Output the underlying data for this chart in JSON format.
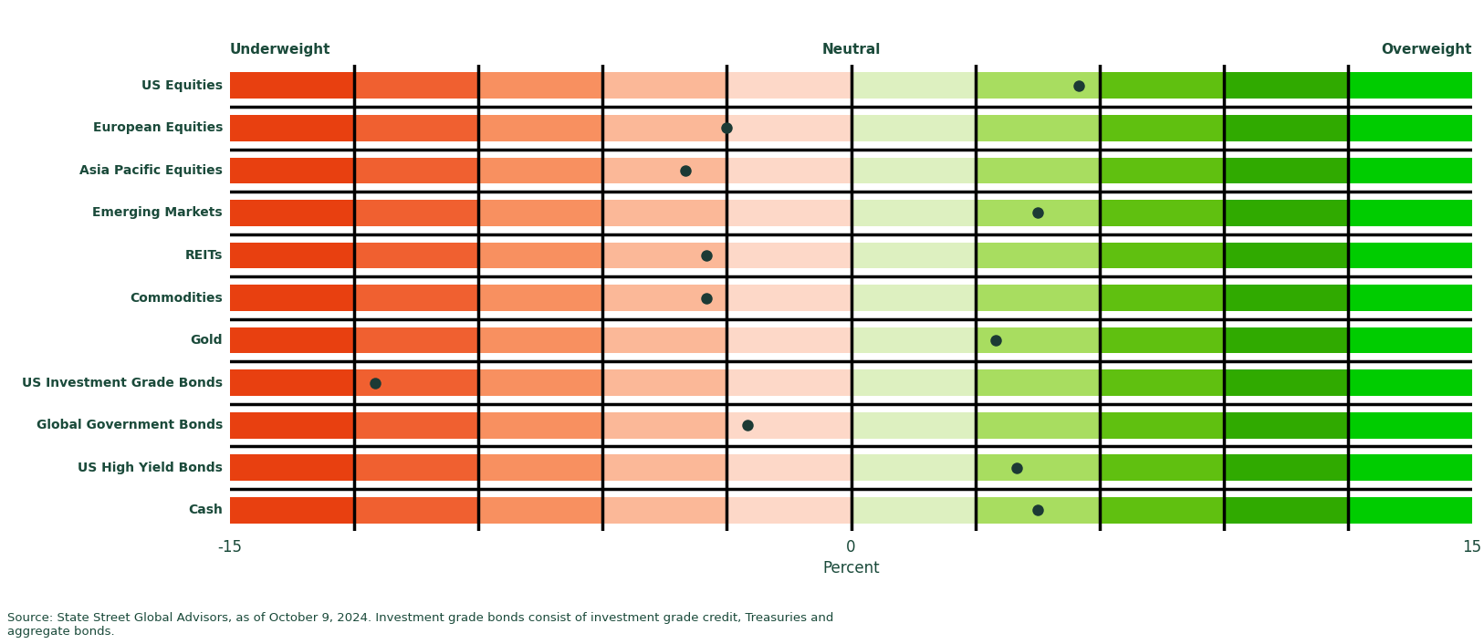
{
  "categories": [
    "US Equities",
    "European Equities",
    "Asia Pacific Equities",
    "Emerging Markets",
    "REITs",
    "Commodities",
    "Gold",
    "US Investment Grade Bonds",
    "Global Government Bonds",
    "US High Yield Bonds",
    "Cash"
  ],
  "dot_positions": [
    5.5,
    -3.0,
    -4.0,
    4.5,
    -3.5,
    -3.5,
    3.5,
    -11.5,
    -2.5,
    4.0,
    4.5
  ],
  "xlim": [
    -15,
    15
  ],
  "x_ticks": [
    -15,
    0,
    15
  ],
  "x_tick_labels": [
    "-15",
    "0",
    "15"
  ],
  "xlabel": "Percent",
  "header_left": "Underweight",
  "header_center": "Neutral",
  "header_right": "Overweight",
  "text_color": "#1a4a3a",
  "dot_color": "#1c3a35",
  "bar_height": 0.62,
  "background_color": "#ffffff",
  "footer_text": "Source: State Street Global Advisors, as of October 9, 2024. Investment grade bonds consist of investment grade credit, Treasuries and\naggregate bonds.",
  "n_segments": 10,
  "colors_left": [
    "#e84010",
    "#f06030",
    "#f89060",
    "#fbb898",
    "#fdd8c8"
  ],
  "colors_right": [
    "#ddf0c0",
    "#a8dd60",
    "#60c010",
    "#30aa00",
    "#00cc00"
  ],
  "seg_sep_color": "#000000",
  "row_sep_color": "#000000"
}
